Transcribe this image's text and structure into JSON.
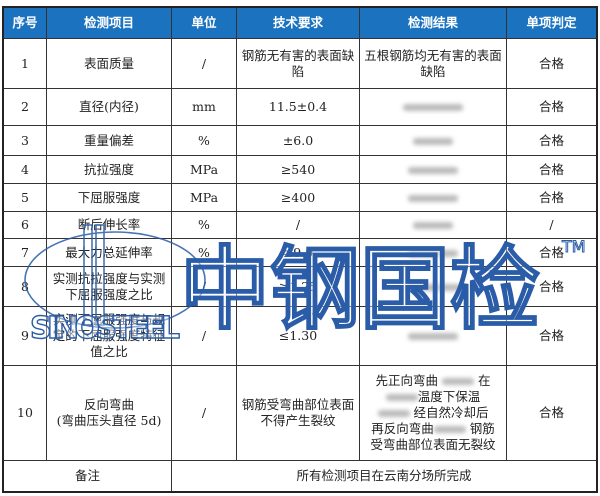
{
  "headers": [
    "序号",
    "检测项目",
    "单位",
    "技术要求",
    "检测结果",
    "单项判定"
  ],
  "rows": [
    {
      "no": "1",
      "item": "表面质量",
      "unit": "/",
      "req": "钢筋无有害的表面缺陷",
      "result": "五根钢筋均无有害的表面缺陷",
      "verdict": "合格"
    },
    {
      "no": "2",
      "item": "直径(内径)",
      "unit": "mm",
      "req": "11.5±0.4",
      "result": "",
      "verdict": "合格"
    },
    {
      "no": "3",
      "item": "重量偏差",
      "unit": "%",
      "req": "±6.0",
      "result": "",
      "verdict": "合格"
    },
    {
      "no": "4",
      "item": "抗拉强度",
      "unit": "MPa",
      "req": "≥540",
      "result": "",
      "verdict": "合格"
    },
    {
      "no": "5",
      "item": "下屈服强度",
      "unit": "MPa",
      "req": "≥400",
      "result": "",
      "verdict": "合格"
    },
    {
      "no": "6",
      "item": "断后伸长率",
      "unit": "%",
      "req": "/",
      "result": "",
      "verdict": "/"
    },
    {
      "no": "7",
      "item": "最大力总延伸率",
      "unit": "%",
      "req": "≥9.0",
      "result": "",
      "verdict": "合格"
    },
    {
      "no": "8",
      "item": "实测抗拉强度与实测下屈服强度之比",
      "unit": "/",
      "req": "≥1.25",
      "result": "",
      "verdict": "合格"
    },
    {
      "no": "9",
      "item": "实测下屈服强度与规定的下屈服强度特征值之比",
      "unit": "/",
      "req": "≤1.30",
      "result": "",
      "verdict": "合格"
    },
    {
      "no": "10",
      "item": "反向弯曲\n(弯曲压头直径 5d)",
      "unit": "/",
      "req": "钢筋受弯曲部位表面不得产生裂纹",
      "result_lines": [
        "先正向弯曲",
        "在",
        "温度下保温",
        "经自然冷却后",
        "再反向弯曲",
        "钢筋",
        "受弯曲部位表面无裂纹"
      ],
      "verdict": "合格"
    }
  ],
  "note_label": "备注",
  "note_text": "所有检测项目在云南分场所完成",
  "watermark": {
    "cn": "中钢国检",
    "en": "SINOSTEEL",
    "tm": "TM"
  },
  "colors": {
    "header": "#1b73c0",
    "watermark": "#2a5ca8"
  }
}
